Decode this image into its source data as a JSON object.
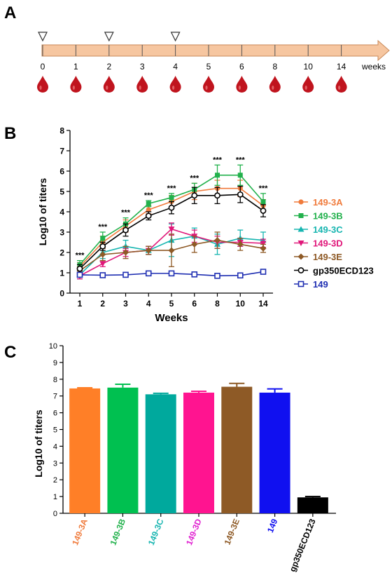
{
  "panels": {
    "a_label": "A",
    "b_label": "B",
    "c_label": "C"
  },
  "timeline": {
    "ticks": [
      "0",
      "1",
      "2",
      "3",
      "4",
      "5",
      "6",
      "8",
      "10",
      "14"
    ],
    "unit": "weeks",
    "injection_ticks": [
      "0",
      "2",
      "4"
    ],
    "bar_color": "#f6c6a0",
    "drop_color": "#c0141e"
  },
  "chart_data": [
    {
      "type": "line",
      "panel": "B",
      "xlabel": "Weeks",
      "ylabel": "Log10 of titers",
      "categories": [
        "1",
        "2",
        "3",
        "4",
        "5",
        "6",
        "8",
        "10",
        "14"
      ],
      "ylim": [
        0,
        8
      ],
      "yticks": [
        "0",
        "1",
        "2",
        "3",
        "4",
        "5",
        "6",
        "7",
        "8"
      ],
      "grid": false,
      "legend": "right",
      "significance": [
        "***",
        "***",
        "***",
        "***",
        "***",
        "***",
        "***",
        "***",
        "***"
      ],
      "series": [
        {
          "name": "149-3A",
          "color": "#f07b3c",
          "marker": "circle-filled",
          "values": [
            1.3,
            2.5,
            3.3,
            4.1,
            4.5,
            5.0,
            5.15,
            5.15,
            4.3
          ],
          "errors": [
            0.2,
            0.3,
            0.3,
            0.2,
            0.3,
            0.4,
            0.4,
            0.4,
            0.3
          ]
        },
        {
          "name": "149-3B",
          "color": "#22b14c",
          "marker": "square-filled",
          "values": [
            1.4,
            2.7,
            3.4,
            4.4,
            4.7,
            5.1,
            5.8,
            5.8,
            4.5
          ],
          "errors": [
            0.2,
            0.3,
            0.3,
            0.15,
            0.2,
            0.3,
            0.5,
            0.5,
            0.4
          ]
        },
        {
          "name": "149-3C",
          "color": "#16b5b0",
          "marker": "triangle-up",
          "values": [
            0.9,
            2.0,
            2.3,
            2.1,
            2.6,
            2.8,
            2.4,
            2.7,
            2.6
          ],
          "errors": [
            0.2,
            0.3,
            0.3,
            0.2,
            0.8,
            0.4,
            0.5,
            0.4,
            0.4
          ]
        },
        {
          "name": "149-3D",
          "color": "#e0187a",
          "marker": "triangle-down",
          "values": [
            0.85,
            1.45,
            2.0,
            2.1,
            3.15,
            2.8,
            2.5,
            2.5,
            2.45
          ],
          "errors": [
            0.15,
            0.15,
            0.2,
            0.2,
            0.3,
            0.3,
            0.3,
            0.2,
            0.2
          ]
        },
        {
          "name": "149-3E",
          "color": "#8e5a26",
          "marker": "diamond",
          "values": [
            1.1,
            1.9,
            2.0,
            2.1,
            2.1,
            2.4,
            2.6,
            2.4,
            2.2
          ],
          "errors": [
            0.2,
            0.3,
            0.3,
            0.2,
            0.8,
            0.4,
            0.4,
            0.3,
            0.2
          ]
        },
        {
          "name": "gp350ECD123",
          "color": "#000000",
          "marker": "circle-open",
          "values": [
            1.2,
            2.3,
            3.1,
            3.8,
            4.2,
            4.8,
            4.8,
            4.85,
            4.05
          ],
          "errors": [
            0.2,
            0.2,
            0.3,
            0.2,
            0.3,
            0.4,
            0.4,
            0.4,
            0.3
          ]
        },
        {
          "name": "149",
          "color": "#1f2fb2",
          "marker": "square-open",
          "values": [
            0.9,
            0.88,
            0.9,
            0.97,
            0.97,
            0.92,
            0.85,
            0.87,
            1.05
          ],
          "errors": [
            0.05,
            0.05,
            0.05,
            0.05,
            0.1,
            0.05,
            0.05,
            0.05,
            0.1
          ]
        }
      ]
    },
    {
      "type": "bar",
      "panel": "C",
      "ylabel": "Log10 of titers",
      "categories": [
        "149-3A",
        "149-3B",
        "149-3C",
        "149-3D",
        "149-3E",
        "149",
        "gp350ECD123"
      ],
      "category_colors": [
        "#ff7f27",
        "#00c050",
        "#00a99d",
        "#ff1490",
        "#8e5a26",
        "#1010f0",
        "#000000"
      ],
      "label_colors": [
        "#f07b3c",
        "#22b14c",
        "#16b5b0",
        "#e020d0",
        "#8e5a26",
        "#1010f0",
        "#000000"
      ],
      "values": [
        7.45,
        7.5,
        7.1,
        7.2,
        7.55,
        7.2,
        0.95
      ],
      "errors": [
        0.04,
        0.2,
        0.06,
        0.08,
        0.2,
        0.22,
        0.05
      ],
      "ylim": [
        0,
        10
      ],
      "yticks": [
        "0",
        "1",
        "2",
        "3",
        "4",
        "5",
        "6",
        "7",
        "8",
        "9",
        "10"
      ],
      "grid": false
    }
  ]
}
